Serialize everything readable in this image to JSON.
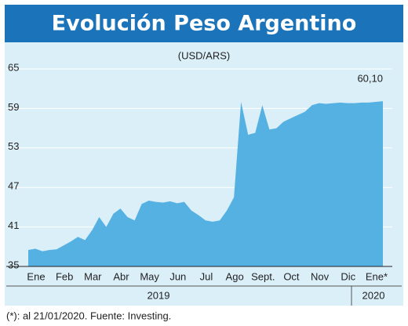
{
  "chart_data": {
    "type": "area",
    "title": "Evolución Peso Argentino",
    "subtitle": "(USD/ARS)",
    "categories": [
      "Ene",
      null,
      null,
      null,
      "Feb",
      null,
      null,
      null,
      "Mar",
      null,
      null,
      null,
      "Abr",
      null,
      null,
      null,
      "May",
      null,
      null,
      null,
      "Jun",
      null,
      null,
      null,
      "Jul",
      null,
      null,
      null,
      "Ago",
      null,
      null,
      null,
      "Sept.",
      null,
      null,
      null,
      "Oct",
      null,
      null,
      null,
      "Nov",
      null,
      null,
      null,
      "Dic",
      null,
      null,
      null,
      "Ene*",
      null,
      null
    ],
    "values": [
      37.5,
      37.7,
      37.3,
      37.5,
      37.6,
      38.2,
      38.8,
      39.5,
      39.0,
      40.5,
      42.5,
      41.0,
      43.0,
      43.8,
      42.5,
      42.0,
      44.5,
      45.0,
      44.8,
      44.7,
      44.9,
      44.6,
      44.8,
      43.5,
      42.8,
      42.0,
      41.8,
      42.0,
      43.5,
      45.5,
      60.0,
      55.0,
      55.3,
      59.5,
      55.8,
      56.0,
      57.0,
      57.5,
      58.0,
      58.5,
      59.5,
      59.8,
      59.7,
      59.8,
      59.9,
      59.8,
      59.8,
      59.9,
      59.9,
      60.0,
      60.1
    ],
    "value_labels": [
      null,
      null,
      null,
      null,
      null,
      null,
      null,
      null,
      null,
      null,
      null,
      null,
      null,
      null,
      null,
      null,
      null,
      null,
      null,
      null,
      null,
      null,
      null,
      null,
      null,
      null,
      null,
      null,
      null,
      null,
      null,
      null,
      null,
      null,
      null,
      null,
      null,
      null,
      null,
      null,
      null,
      null,
      null,
      null,
      null,
      null,
      null,
      null,
      null,
      null,
      "60,10"
    ],
    "color": "#56b1e3",
    "ylim": [
      35,
      65
    ],
    "yticks": [
      35,
      41,
      47,
      53,
      59,
      65
    ],
    "year_labels": [
      "2019",
      "2020"
    ],
    "footnote": "(*): al 21/01/2020. Fuente: Investing."
  }
}
